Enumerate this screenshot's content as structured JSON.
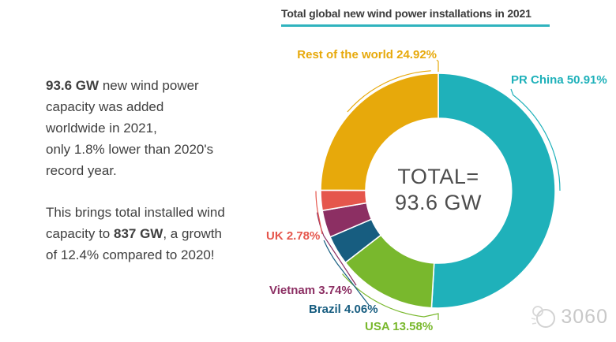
{
  "header": {
    "title": "Total global new wind power installations in 2021"
  },
  "left_panel": {
    "para1": {
      "line1_bold": "93.6 GW",
      "line1_rest": " new wind power",
      "line2": "capacity was added",
      "line3": "worldwide in 2021,",
      "line4": "only 1.8% lower than 2020's",
      "line5": "record year."
    },
    "para2": {
      "line1": "This brings total installed wind",
      "line2_pre": "capacity to ",
      "line2_bold": "837 GW",
      "line2_post": ", a growth",
      "line3": "of 12.4% compared to 2020!"
    }
  },
  "chart_data": {
    "type": "pie",
    "subtype": "donut",
    "title": "Total global new wind power installations in 2021",
    "unit": "%",
    "start_angle_deg": 0,
    "direction": "clockwise",
    "center_label": {
      "line1": "TOTAL=",
      "line2": "93.6 GW"
    },
    "total_gw": "93.6 GW",
    "segments": [
      {
        "label": "PR China",
        "value": 50.91,
        "color": "#1fb1ba"
      },
      {
        "label": "USA",
        "value": 13.58,
        "color": "#79b82d"
      },
      {
        "label": "Brazil",
        "value": 4.06,
        "color": "#175d80"
      },
      {
        "label": "Vietnam",
        "value": 3.74,
        "color": "#8c2f63"
      },
      {
        "label": "UK",
        "value": 2.78,
        "color": "#e5564c"
      },
      {
        "label": "Rest of the world",
        "value": 24.92,
        "color": "#e7a90b"
      }
    ]
  },
  "watermark": {
    "text": "3060"
  },
  "colors": {
    "title_underline": "#2fb3be",
    "body_text": "#3f3f3f",
    "center_text": "#4d4d4d",
    "watermark": "#c8c8c8"
  }
}
